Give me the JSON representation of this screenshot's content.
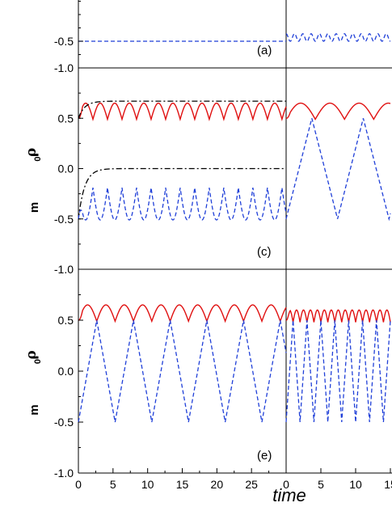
{
  "chart_data": {
    "type": "line",
    "x_title": "time",
    "x_ticks": [
      "0",
      "5",
      "10",
      "15",
      "20",
      "25",
      "0",
      "5",
      "10",
      "15"
    ],
    "y_ticks": [
      "0.5",
      "0.0",
      "-0.5",
      "-1.0"
    ],
    "panels": [
      {
        "label": "(a)",
        "ylim": [
          -1.0,
          0.5
        ],
        "ylabel_top": "",
        "ylabel_bottom": "",
        "series": [
          {
            "style": "dashed",
            "color": "#1f3fd8",
            "side": "left",
            "x": [
              0,
              30
            ],
            "y": [
              -0.5,
              -0.5
            ]
          },
          {
            "style": "dashed",
            "color": "#1f3fd8",
            "side": "right",
            "x": [
              0,
              15
            ],
            "y": [
              -0.36,
              -0.5
            ],
            "note_period": 1.2
          }
        ]
      },
      {
        "label": "(c)",
        "ylim": [
          -1.0,
          1.0
        ],
        "ylabel_top": "ρ",
        "ylabel_top_sub": "0",
        "ylabel_bottom": "m",
        "series": [
          {
            "style": "solid",
            "color": "#e01010",
            "side": "left",
            "mean": 0.57,
            "amplitude": 0.08,
            "period": 2.1
          },
          {
            "style": "dashdot",
            "color": "#000000",
            "side": "left",
            "start": 0.5,
            "end": 0.67
          },
          {
            "style": "dashdot",
            "color": "#000000",
            "side": "left",
            "start": -0.5,
            "end": 0.0
          },
          {
            "style": "dashed",
            "color": "#1f3fd8",
            "side": "left",
            "mean": -0.35,
            "amplitude": 0.16,
            "period": 2.1
          },
          {
            "style": "solid",
            "color": "#e01010",
            "side": "right",
            "mean": 0.57,
            "amplitude": 0.08,
            "period": 4.2
          },
          {
            "style": "dashed",
            "color": "#1f3fd8",
            "side": "right",
            "min": -0.5,
            "max": 0.5,
            "period": 7.4
          }
        ]
      },
      {
        "label": "(e)",
        "ylim": [
          -1.0,
          1.0
        ],
        "ylabel_top": "ρ",
        "ylabel_top_sub": "0",
        "ylabel_bottom": "m",
        "series": [
          {
            "style": "solid",
            "color": "#e01010",
            "side": "left",
            "mean": 0.57,
            "amplitude": 0.08,
            "period": 2.65
          },
          {
            "style": "dashed",
            "color": "#1f3fd8",
            "side": "left",
            "min": -0.5,
            "max": 0.5,
            "period": 5.3
          },
          {
            "style": "solid",
            "color": "#e01010",
            "side": "right",
            "mean": 0.54,
            "amplitude": 0.06,
            "period": 1.0
          },
          {
            "style": "dashed",
            "color": "#1f3fd8",
            "side": "right",
            "min": -0.5,
            "max": 0.5,
            "period": 2.0
          }
        ]
      }
    ]
  }
}
